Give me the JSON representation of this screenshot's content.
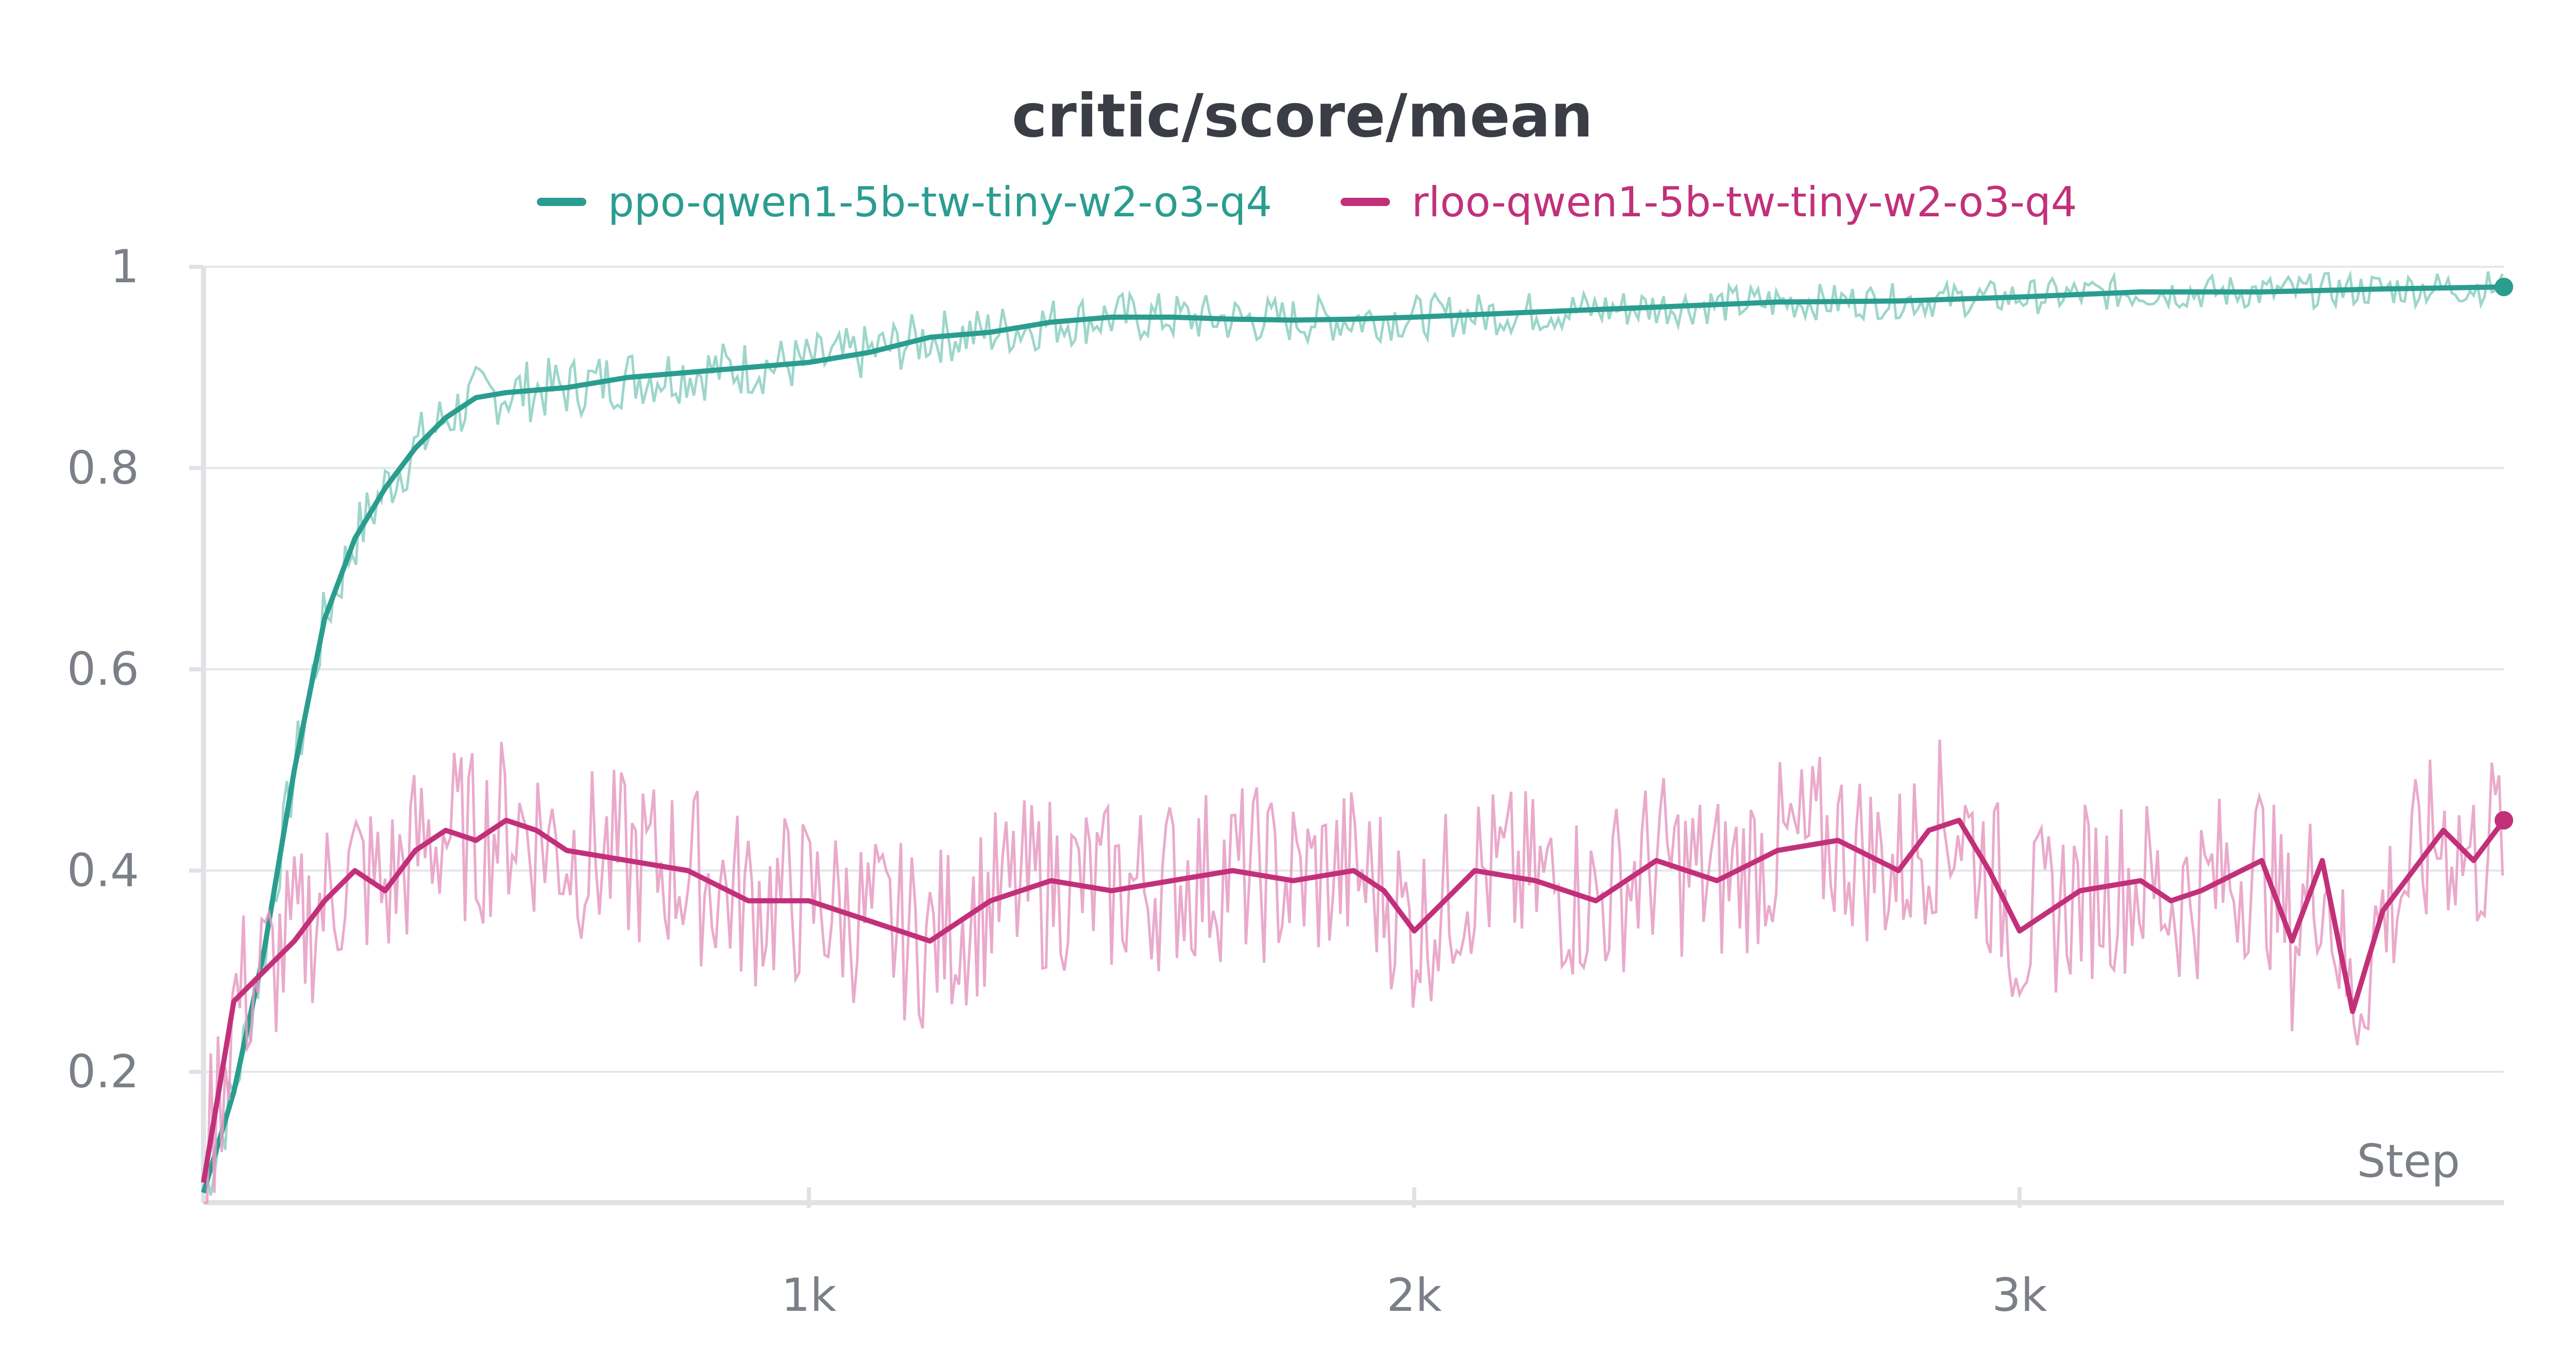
{
  "chart_data": {
    "type": "line",
    "title": "critic/score/mean",
    "xlabel": "Step",
    "ylabel": "",
    "xlim": [
      0,
      3800
    ],
    "ylim": [
      0.07,
      1.0
    ],
    "x_ticks": [
      1000,
      2000,
      3000
    ],
    "x_tick_labels": [
      "1k",
      "2k",
      "3k"
    ],
    "y_ticks": [
      0.2,
      0.4,
      0.6,
      0.8,
      1.0
    ],
    "y_tick_labels": [
      "0.2",
      "0.4",
      "0.6",
      "0.8",
      "1"
    ],
    "grid": true,
    "legend_position": "top-center",
    "series": [
      {
        "name": "ppo-qwen1-5b-tw-tiny-w2-o3-q4",
        "color": "#2a9d8f",
        "raw_color": "#8ccfc2",
        "x": [
          0,
          50,
          100,
          150,
          200,
          250,
          300,
          350,
          400,
          450,
          500,
          600,
          700,
          800,
          900,
          1000,
          1100,
          1200,
          1300,
          1400,
          1500,
          1600,
          1700,
          1800,
          1900,
          2000,
          2200,
          2400,
          2600,
          2800,
          3000,
          3200,
          3400,
          3600,
          3800
        ],
        "values": [
          0.08,
          0.18,
          0.32,
          0.5,
          0.65,
          0.73,
          0.78,
          0.82,
          0.85,
          0.87,
          0.875,
          0.88,
          0.89,
          0.895,
          0.9,
          0.905,
          0.915,
          0.93,
          0.935,
          0.945,
          0.95,
          0.95,
          0.948,
          0.947,
          0.948,
          0.95,
          0.955,
          0.96,
          0.965,
          0.966,
          0.97,
          0.975,
          0.975,
          0.978,
          0.98
        ]
      },
      {
        "name": "rloo-qwen1-5b-tw-tiny-w2-o3-q4",
        "color": "#c2307a",
        "raw_color": "#e69bc3",
        "x": [
          0,
          50,
          100,
          150,
          200,
          250,
          300,
          350,
          400,
          450,
          500,
          550,
          600,
          700,
          800,
          900,
          1000,
          1100,
          1200,
          1300,
          1400,
          1500,
          1600,
          1700,
          1800,
          1900,
          1950,
          2000,
          2100,
          2200,
          2300,
          2400,
          2500,
          2600,
          2700,
          2800,
          2850,
          2900,
          2950,
          3000,
          3100,
          3200,
          3250,
          3300,
          3400,
          3450,
          3500,
          3550,
          3600,
          3700,
          3750,
          3800
        ],
        "values": [
          0.09,
          0.27,
          0.3,
          0.33,
          0.37,
          0.4,
          0.38,
          0.42,
          0.44,
          0.43,
          0.45,
          0.44,
          0.42,
          0.41,
          0.4,
          0.37,
          0.37,
          0.35,
          0.33,
          0.37,
          0.39,
          0.38,
          0.39,
          0.4,
          0.39,
          0.4,
          0.38,
          0.34,
          0.4,
          0.39,
          0.37,
          0.41,
          0.39,
          0.42,
          0.43,
          0.4,
          0.44,
          0.45,
          0.4,
          0.34,
          0.38,
          0.39,
          0.37,
          0.38,
          0.41,
          0.33,
          0.41,
          0.26,
          0.36,
          0.44,
          0.41,
          0.45
        ]
      }
    ]
  }
}
